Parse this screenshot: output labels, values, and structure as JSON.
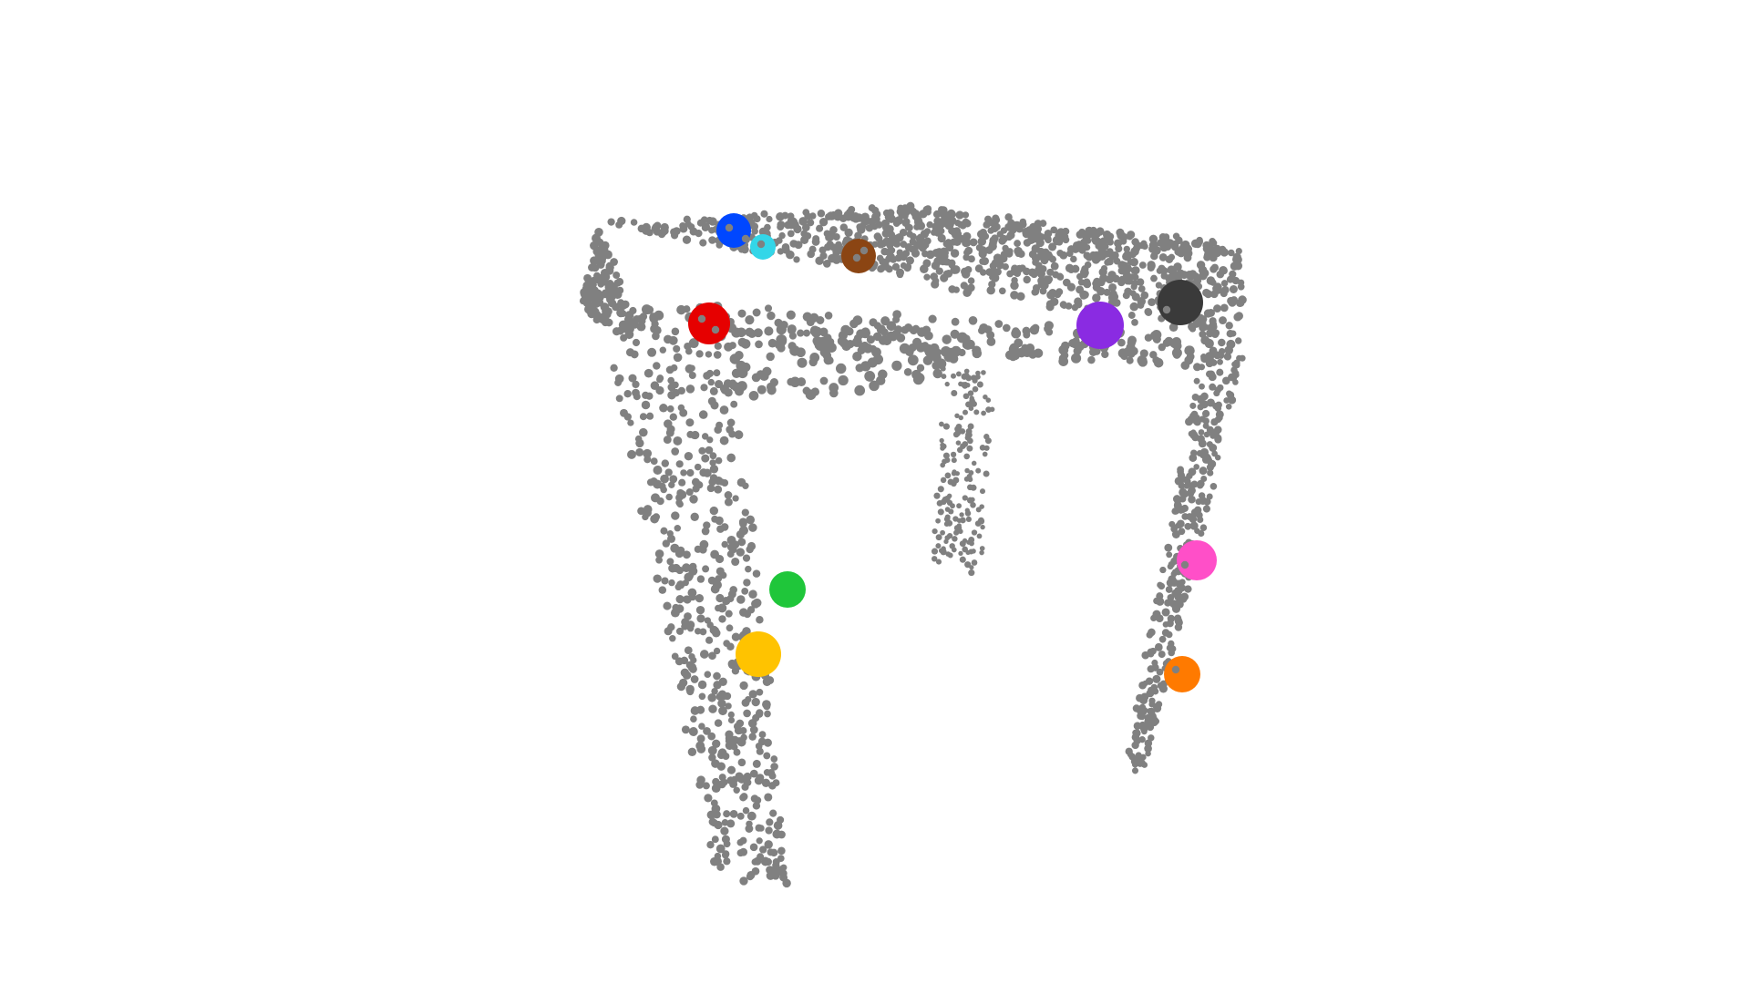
{
  "scene": {
    "background_color": "#ffffff",
    "point_color": "#808080",
    "object": "table-point-cloud",
    "keypoint_colors": [
      "#0047ff",
      "#33d6e8",
      "#8b4513",
      "#e60000",
      "#8a2be2",
      "#3a3a3a",
      "#ff4fc8",
      "#1fc63a",
      "#ffc300",
      "#ff7a00"
    ]
  }
}
